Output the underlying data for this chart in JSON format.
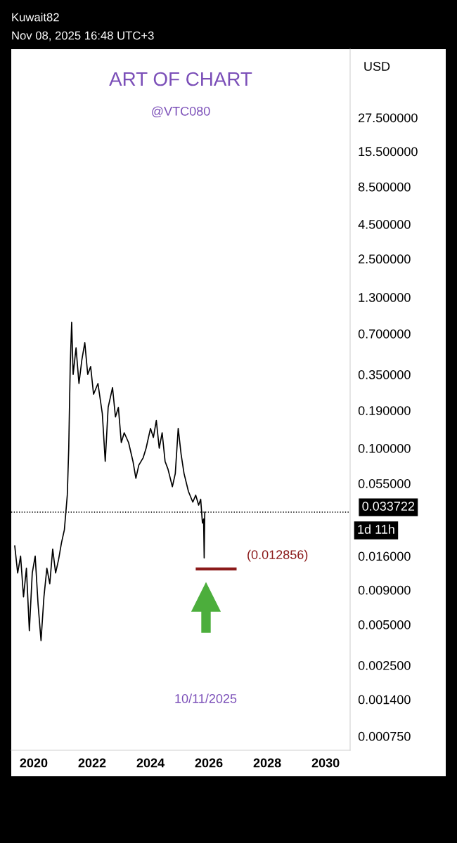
{
  "chart_data": {
    "type": "line",
    "title": "ART OF CHART",
    "subtitle": "@VTC080",
    "x": [
      2019.35,
      2019.45,
      2019.55,
      2019.65,
      2019.75,
      2019.85,
      2019.95,
      2020.05,
      2020.15,
      2020.25,
      2020.35,
      2020.45,
      2020.55,
      2020.65,
      2020.75,
      2020.85,
      2020.95,
      2021.05,
      2021.15,
      2021.2,
      2021.25,
      2021.3,
      2021.35,
      2021.45,
      2021.55,
      2021.65,
      2021.75,
      2021.85,
      2021.95,
      2022.05,
      2022.2,
      2022.35,
      2022.45,
      2022.55,
      2022.7,
      2022.8,
      2022.9,
      2023.0,
      2023.1,
      2023.25,
      2023.4,
      2023.5,
      2023.6,
      2023.75,
      2023.85,
      2024.0,
      2024.1,
      2024.2,
      2024.3,
      2024.4,
      2024.5,
      2024.6,
      2024.75,
      2024.85,
      2024.95,
      2025.05,
      2025.15,
      2025.3,
      2025.45,
      2025.55,
      2025.65,
      2025.72,
      2025.78,
      2025.82,
      2025.84,
      2025.86
    ],
    "series": [
      {
        "color": "#000000",
        "values": [
          0.019,
          0.012,
          0.016,
          0.008,
          0.013,
          0.0045,
          0.012,
          0.016,
          0.007,
          0.0038,
          0.008,
          0.013,
          0.01,
          0.018,
          0.012,
          0.015,
          0.02,
          0.025,
          0.045,
          0.1,
          0.4,
          0.85,
          0.35,
          0.55,
          0.3,
          0.45,
          0.6,
          0.35,
          0.4,
          0.25,
          0.3,
          0.18,
          0.08,
          0.2,
          0.28,
          0.17,
          0.2,
          0.11,
          0.13,
          0.11,
          0.08,
          0.06,
          0.075,
          0.085,
          0.1,
          0.14,
          0.12,
          0.16,
          0.1,
          0.13,
          0.08,
          0.07,
          0.052,
          0.065,
          0.14,
          0.09,
          0.065,
          0.048,
          0.04,
          0.045,
          0.038,
          0.042,
          0.028,
          0.03,
          0.0155,
          0.033722
        ]
      }
    ],
    "xlim": [
      2019.23,
      2030.84
    ],
    "xticks": [
      2020,
      2022,
      2024,
      2026,
      2028,
      2030
    ],
    "ylim": [
      0.00059,
      88
    ],
    "log": "y",
    "yticks": [
      {
        "value": 0.00075,
        "label": "0.000750"
      },
      {
        "value": 0.0014,
        "label": "0.001400"
      },
      {
        "value": 0.0025,
        "label": "0.002500"
      },
      {
        "value": 0.005,
        "label": "0.005000"
      },
      {
        "value": 0.009,
        "label": "0.009000"
      },
      {
        "value": 0.016,
        "label": "0.016000"
      },
      {
        "value": 0.055,
        "label": "0.055000"
      },
      {
        "value": 0.1,
        "label": "0.100000"
      },
      {
        "value": 0.19,
        "label": "0.190000"
      },
      {
        "value": 0.35,
        "label": "0.350000"
      },
      {
        "value": 0.7,
        "label": "0.700000"
      },
      {
        "value": 1.3,
        "label": "1.300000"
      },
      {
        "value": 2.5,
        "label": "2.500000"
      },
      {
        "value": 4.5,
        "label": "4.500000"
      },
      {
        "value": 8.5,
        "label": "8.500000"
      },
      {
        "value": 15.5,
        "label": "15.500000"
      },
      {
        "value": 27.5,
        "label": "27.500000"
      }
    ],
    "ref_lines": [
      {
        "axis": "y",
        "value": 0.033722,
        "label": "0.033722",
        "color": "#000000",
        "line_style": "dotted"
      },
      {
        "axis": "y",
        "value": 0.012856,
        "label": "(0.012856)",
        "color": "#8b1a1a",
        "line_style": "solid"
      }
    ],
    "ylabel": "USD",
    "annotations": [
      "Kuwait82",
      "Nov 08, 2025 16:48 UTC+3",
      "10/11/2025",
      "1d 11h"
    ],
    "grid": false
  }
}
